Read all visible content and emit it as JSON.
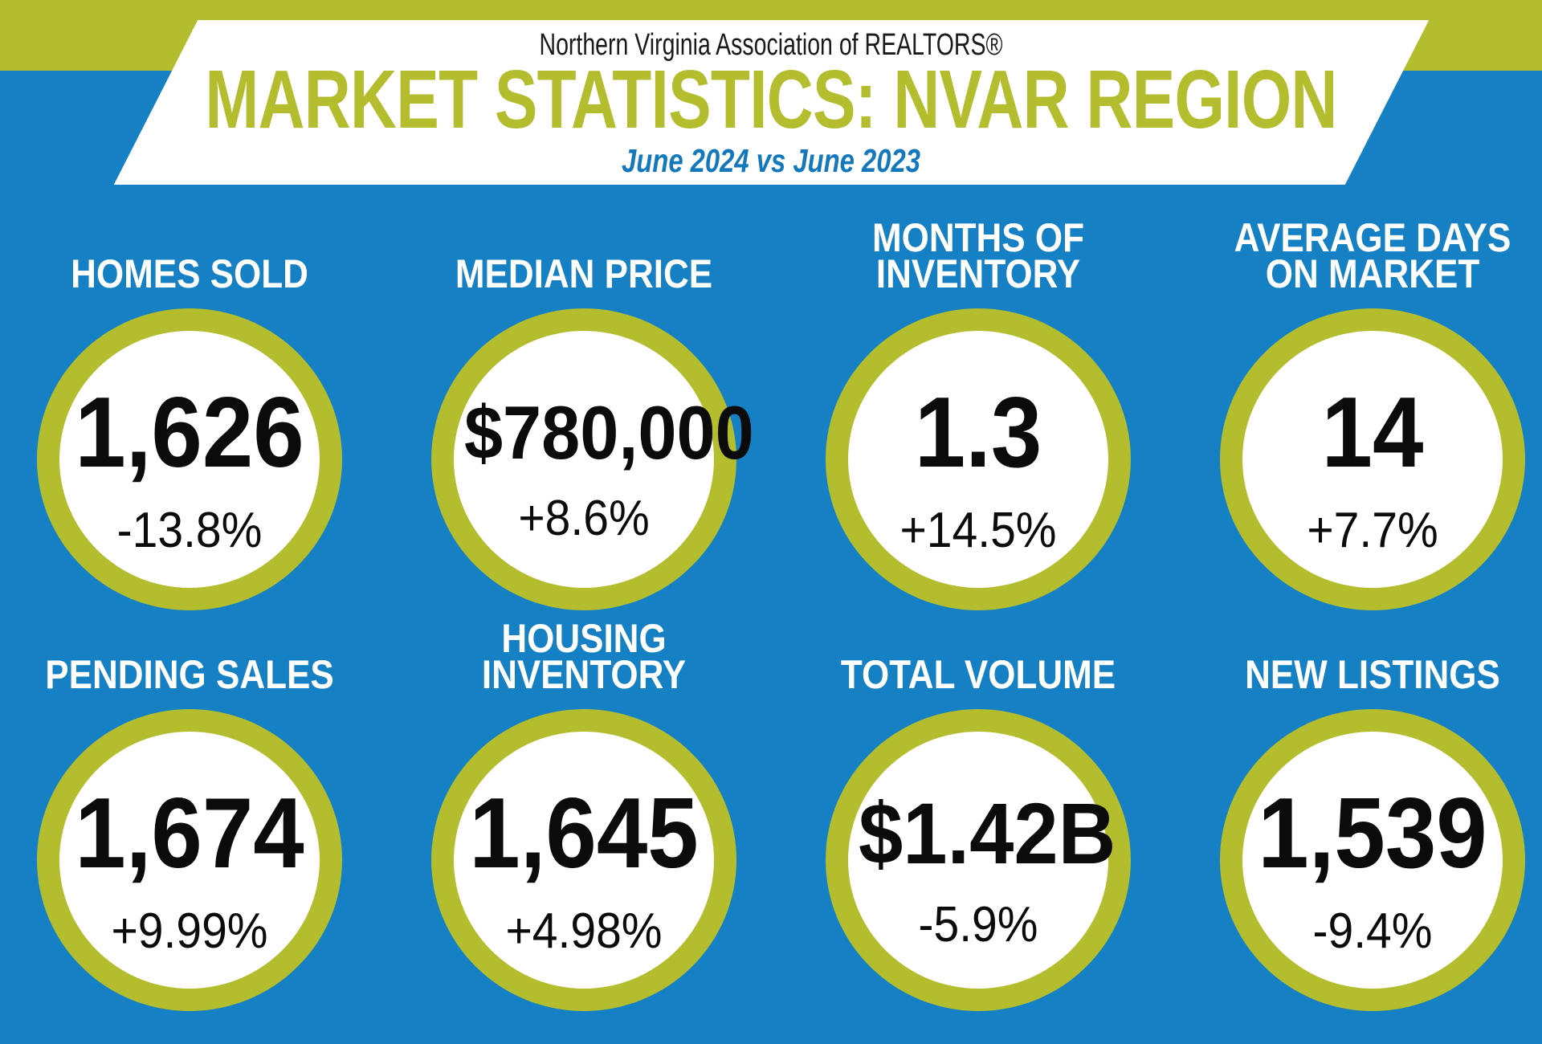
{
  "header": {
    "org": "Northern Virginia Association of REALTORS®",
    "title": "MARKET STATISTICS: NVAR REGION",
    "subtitle": "June 2024 vs June 2023"
  },
  "colors": {
    "accent_green": "#b3bd2d",
    "background_blue": "#1580c4",
    "subtitle_blue": "#1478bd",
    "value_text": "#0b0b0b",
    "label_text": "#ffffff"
  },
  "stats": [
    {
      "label": "HOMES SOLD",
      "value": "1,626",
      "change": "-13.8%"
    },
    {
      "label": "MEDIAN PRICE",
      "value": "$780,000",
      "change": "+8.6%"
    },
    {
      "label": "MONTHS OF\nINVENTORY",
      "value": "1.3",
      "change": "+14.5%"
    },
    {
      "label": "AVERAGE DAYS\nON MARKET",
      "value": "14",
      "change": "+7.7%"
    },
    {
      "label": "PENDING SALES",
      "value": "1,674",
      "change": "+9.99%"
    },
    {
      "label": "HOUSING INVENTORY",
      "value": "1,645",
      "change": "+4.98%"
    },
    {
      "label": "TOTAL VOLUME",
      "value": "$1.42B",
      "change": "-5.9%"
    },
    {
      "label": "NEW LISTINGS",
      "value": "1,539",
      "change": "-9.4%"
    }
  ],
  "chart_data": {
    "type": "table",
    "title": "MARKET STATISTICS: NVAR REGION",
    "subtitle": "June 2024 vs June 2023",
    "source": "Northern Virginia Association of REALTORS®",
    "categories": [
      "HOMES SOLD",
      "MEDIAN PRICE",
      "MONTHS OF INVENTORY",
      "AVERAGE DAYS ON MARKET",
      "PENDING SALES",
      "HOUSING INVENTORY",
      "TOTAL VOLUME",
      "NEW LISTINGS"
    ],
    "values": [
      "1,626",
      "$780,000",
      "1.3",
      "14",
      "1,674",
      "1,645",
      "$1.42B",
      "1,539"
    ],
    "changes_vs_prior_year": [
      "-13.8%",
      "+8.6%",
      "+14.5%",
      "+7.7%",
      "+9.99%",
      "+4.98%",
      "-5.9%",
      "-9.4%"
    ]
  }
}
